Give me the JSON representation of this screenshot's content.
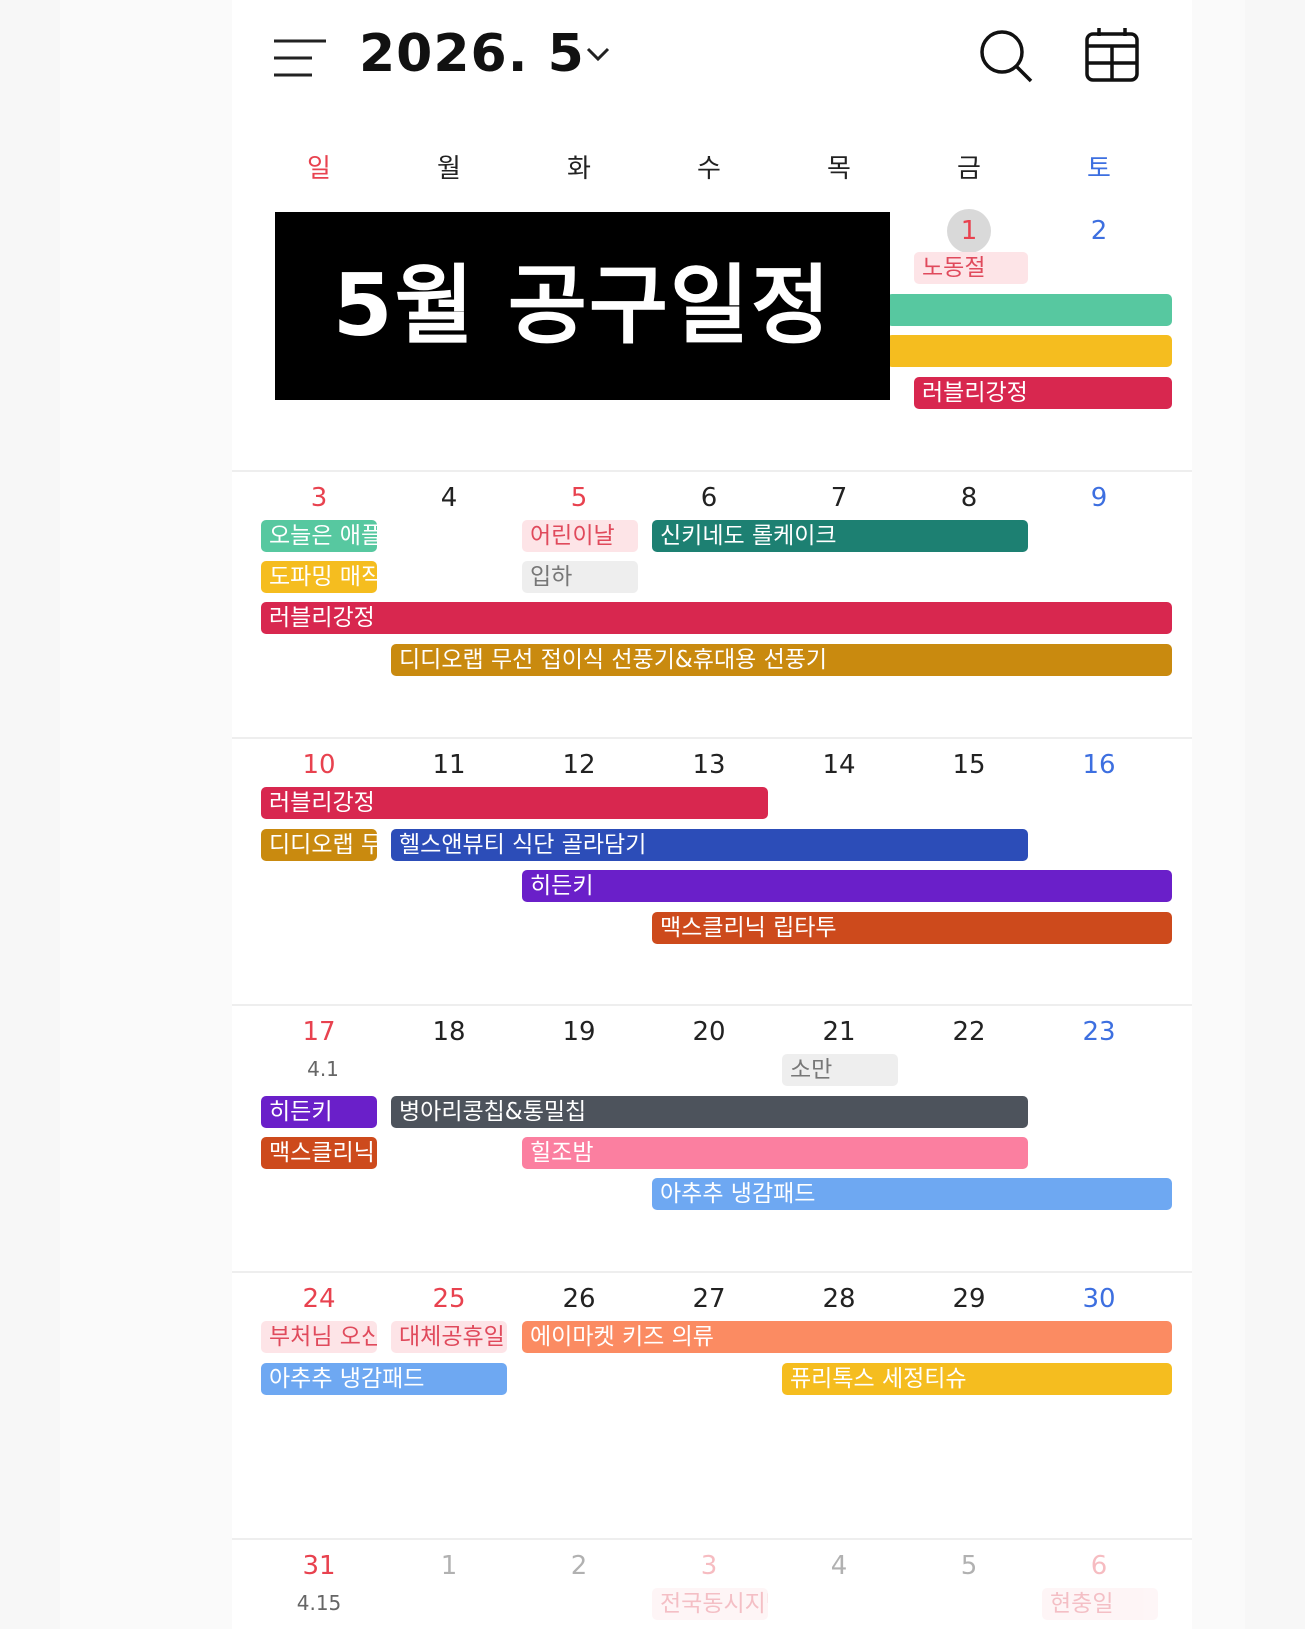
{
  "header": {
    "title": "2026. 5"
  },
  "icons": {
    "menu": "menu-icon",
    "dropdown": "chevron-down-icon",
    "search": "search-icon",
    "calendar": "calendar-grid-icon"
  },
  "weekdays": [
    "일",
    "월",
    "화",
    "수",
    "목",
    "금",
    "토"
  ],
  "banner": "5월 공구일정",
  "weeks": [
    {
      "days": [
        "",
        "",
        "",
        "",
        "",
        "1",
        "2"
      ],
      "lunar": []
    },
    {
      "days": [
        "3",
        "4",
        "5",
        "6",
        "7",
        "8",
        "9"
      ]
    },
    {
      "days": [
        "10",
        "11",
        "12",
        "13",
        "14",
        "15",
        "16"
      ]
    },
    {
      "days": [
        "17",
        "18",
        "19",
        "20",
        "21",
        "22",
        "23"
      ],
      "lunar_sun": "4.1"
    },
    {
      "days": [
        "24",
        "25",
        "26",
        "27",
        "28",
        "29",
        "30"
      ]
    },
    {
      "days": [
        "31",
        "1",
        "2",
        "3",
        "4",
        "5",
        "6"
      ],
      "lunar_sun": "4.15"
    }
  ],
  "events": {
    "w1_nodongjeol": "노동절",
    "w1_lovely": "러블리강정",
    "w2_oneul": "오늘은 애플",
    "w2_dopaming": "도파밍 매직",
    "w2_lovely": "러블리강정",
    "w2_children": "어린이날",
    "w2_ipha": "입하",
    "w2_shinki": "신키네도 롤케이크",
    "w2_didio": "디디오랩 무선 접이식 선풍기&휴대용 선풍기",
    "w3_lovely": "러블리강정",
    "w3_didio": "디디오랩 무선",
    "w3_health": "헬스앤뷰티 식단 골라담기",
    "w3_hidden": "히든키",
    "w3_max": "맥스클리닉 립타투",
    "w4_soman": "소만",
    "w4_hidden": "히든키",
    "w4_max": "맥스클리닉",
    "w4_byung": "병아리콩칩&통밀칩",
    "w4_heal": "힐조밤",
    "w4_achu": "아추추 냉감패드",
    "w5_buddha": "부처님 오신 날",
    "w5_substitute": "대체공휴일",
    "w5_achu": "아추추 냉감패드",
    "w5_amarket": "에이마켓 키즈 의류",
    "w5_puri": "퓨리톡스 세정티슈",
    "w6_election": "전국동시지방선거",
    "w6_memorial": "현충일"
  },
  "colors": {
    "green": "#57c8a0",
    "yellow": "#f5bd1f",
    "crimson": "#d8274f",
    "teal": "#1d8072",
    "mustard": "#c98a0f",
    "navy": "#2c4db8",
    "purple": "#6a1fc9",
    "orange": "#cd4a1c",
    "slate": "#4d535c",
    "pink": "#fb7fa0",
    "sky": "#6ea8f2",
    "salmon": "#fb8b62"
  }
}
